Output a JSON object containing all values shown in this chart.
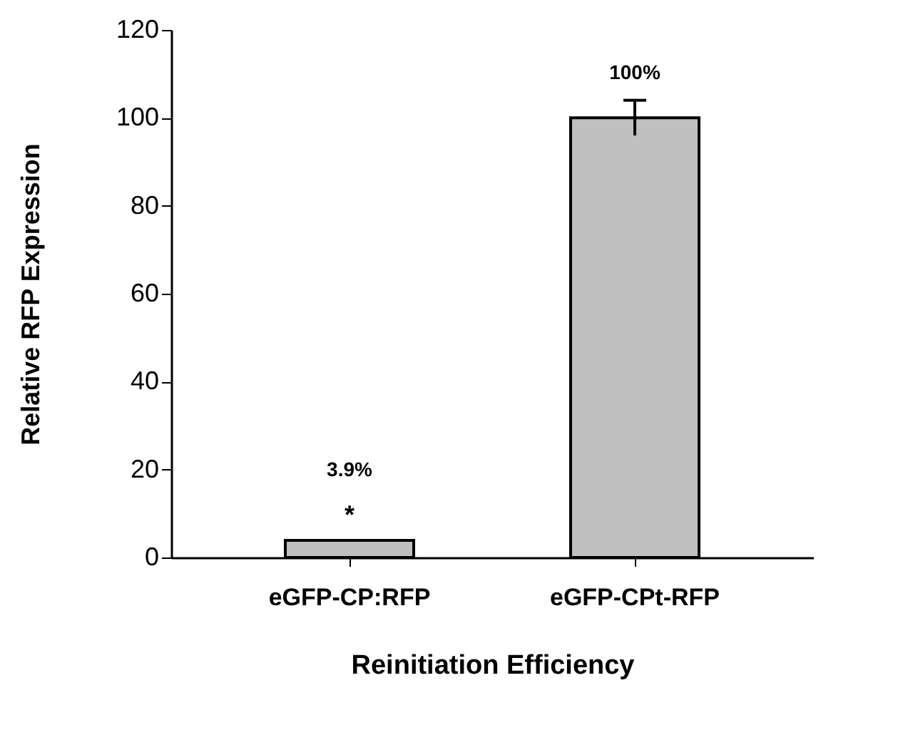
{
  "chart_data": {
    "type": "bar",
    "xlabel": "Reinitiation Efficiency",
    "ylabel": "Relative RFP Expression",
    "categories": [
      "eGFP-CP:RFP",
      "eGFP-CPt-RFP"
    ],
    "values": [
      3.9,
      100
    ],
    "color": "#c0c0c0",
    "errors": [
      null,
      4
    ],
    "value_labels": [
      "3.9%",
      "100%"
    ],
    "annotations": [
      {
        "text": "*",
        "x": "eGFP-CP:RFP",
        "y": 3.9
      }
    ],
    "ylim": [
      0,
      120
    ],
    "yticks": [
      0,
      20,
      40,
      60,
      80,
      100,
      120
    ],
    "grid": false
  }
}
